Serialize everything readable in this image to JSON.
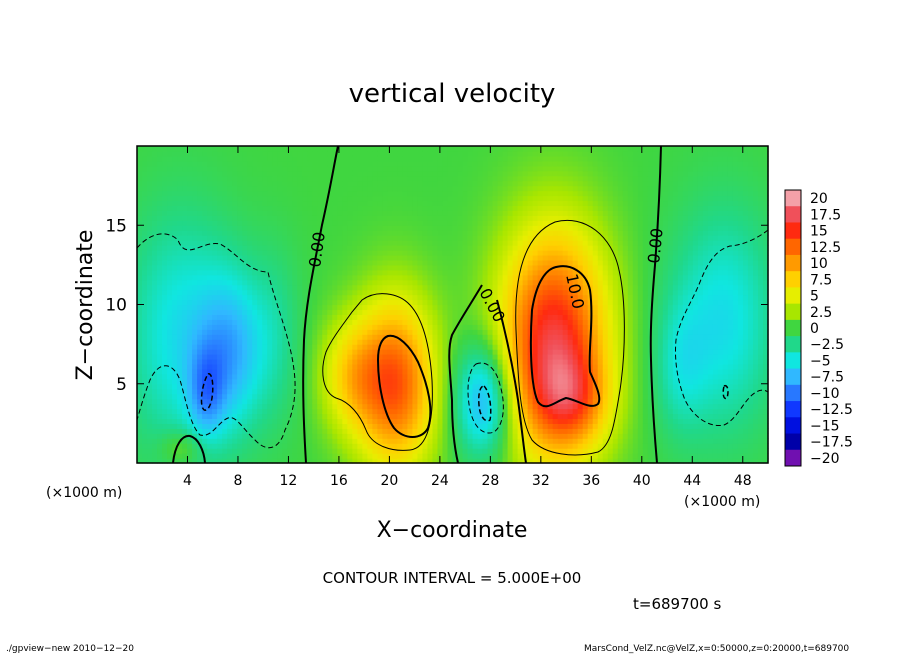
{
  "chart_data": {
    "type": "heatmap",
    "title": "vertical velocity",
    "xlabel": "X−coordinate",
    "ylabel": "Z−coordinate",
    "x_unit_left": "(×1000 m)",
    "x_unit_right": "(×1000 m)",
    "xlim": [
      0,
      50
    ],
    "ylim": [
      0,
      20
    ],
    "x_ticks": [
      4,
      8,
      12,
      16,
      20,
      24,
      28,
      32,
      36,
      40,
      44,
      48
    ],
    "x_tick_labels": [
      "4",
      "8",
      "12",
      "16",
      "20",
      "24",
      "28",
      "32",
      "36",
      "40",
      "44",
      "48"
    ],
    "y_ticks": [
      5,
      10,
      15
    ],
    "y_tick_labels": [
      "5",
      "10",
      "15"
    ],
    "colorbar_levels": [
      20,
      17.5,
      15,
      12.5,
      10,
      7.5,
      5,
      2.5,
      0,
      -2.5,
      -5,
      -7.5,
      -10,
      -12.5,
      -15,
      -17.5,
      -20
    ],
    "colorbar_labels": [
      "20",
      "17.5",
      "15",
      "12.5",
      "10",
      "7.5",
      "5",
      "2.5",
      "0",
      "−2.5",
      "−5",
      "−7.5",
      "−10",
      "−12.5",
      "−15",
      "−17.5",
      "−20"
    ],
    "colorbar_colors": [
      "#f4a0a8",
      "#f0505a",
      "#ff2a10",
      "#ff6600",
      "#ff9a00",
      "#ffd000",
      "#e6ee00",
      "#a8e600",
      "#40d640",
      "#20d88a",
      "#10e6e0",
      "#30b8ff",
      "#2878ff",
      "#1038ff",
      "#0010e0",
      "#0000a8",
      "#7010b0"
    ],
    "contour_labels": [
      "0.00",
      "0.00",
      "0.00",
      "10.0"
    ],
    "features": [
      {
        "x": 20.5,
        "z": 5.0,
        "w": 13.0,
        "sx": 2.2,
        "sz": 3.8
      },
      {
        "x": 33.0,
        "z": 7.5,
        "w": 16.5,
        "sx": 3.0,
        "sz": 5.0
      },
      {
        "x": 34.5,
        "z": 4.0,
        "w": 6.0,
        "sx": 2.0,
        "sz": 2.0
      },
      {
        "x": 17.0,
        "z": 5.5,
        "w": 6.0,
        "sx": 1.8,
        "sz": 2.5
      },
      {
        "x": 27.5,
        "z": 4.0,
        "w": -9.0,
        "sx": 1.6,
        "sz": 2.5
      },
      {
        "x": 3.5,
        "z": 8.0,
        "w": -5.5,
        "sx": 3.2,
        "sz": 5.5
      },
      {
        "x": 7.5,
        "z": 7.0,
        "w": -6.0,
        "sx": 1.8,
        "sz": 3.5
      },
      {
        "x": 5.5,
        "z": 4.5,
        "w": -5.0,
        "sx": 1.0,
        "sz": 2.0
      },
      {
        "x": 46.5,
        "z": 9.0,
        "w": -5.5,
        "sx": 3.0,
        "sz": 5.0
      },
      {
        "x": 43.0,
        "z": 6.0,
        "w": -3.0,
        "sx": 1.5,
        "sz": 3.0
      },
      {
        "x": 11.0,
        "z": 8.0,
        "w": -2.5,
        "sx": 1.5,
        "sz": 4.0
      },
      {
        "x": 3.5,
        "z": 1.0,
        "w": 3.0,
        "sx": 1.2,
        "sz": 0.8
      }
    ]
  },
  "footer": {
    "contour_interval": "CONTOUR INTERVAL = 5.000E+00",
    "time": "t=689700 s",
    "program": "./gpview−new  2010−12−20",
    "source": "MarsCond_VelZ.nc@VelZ,x=0:50000,z=0:20000,t=689700"
  }
}
